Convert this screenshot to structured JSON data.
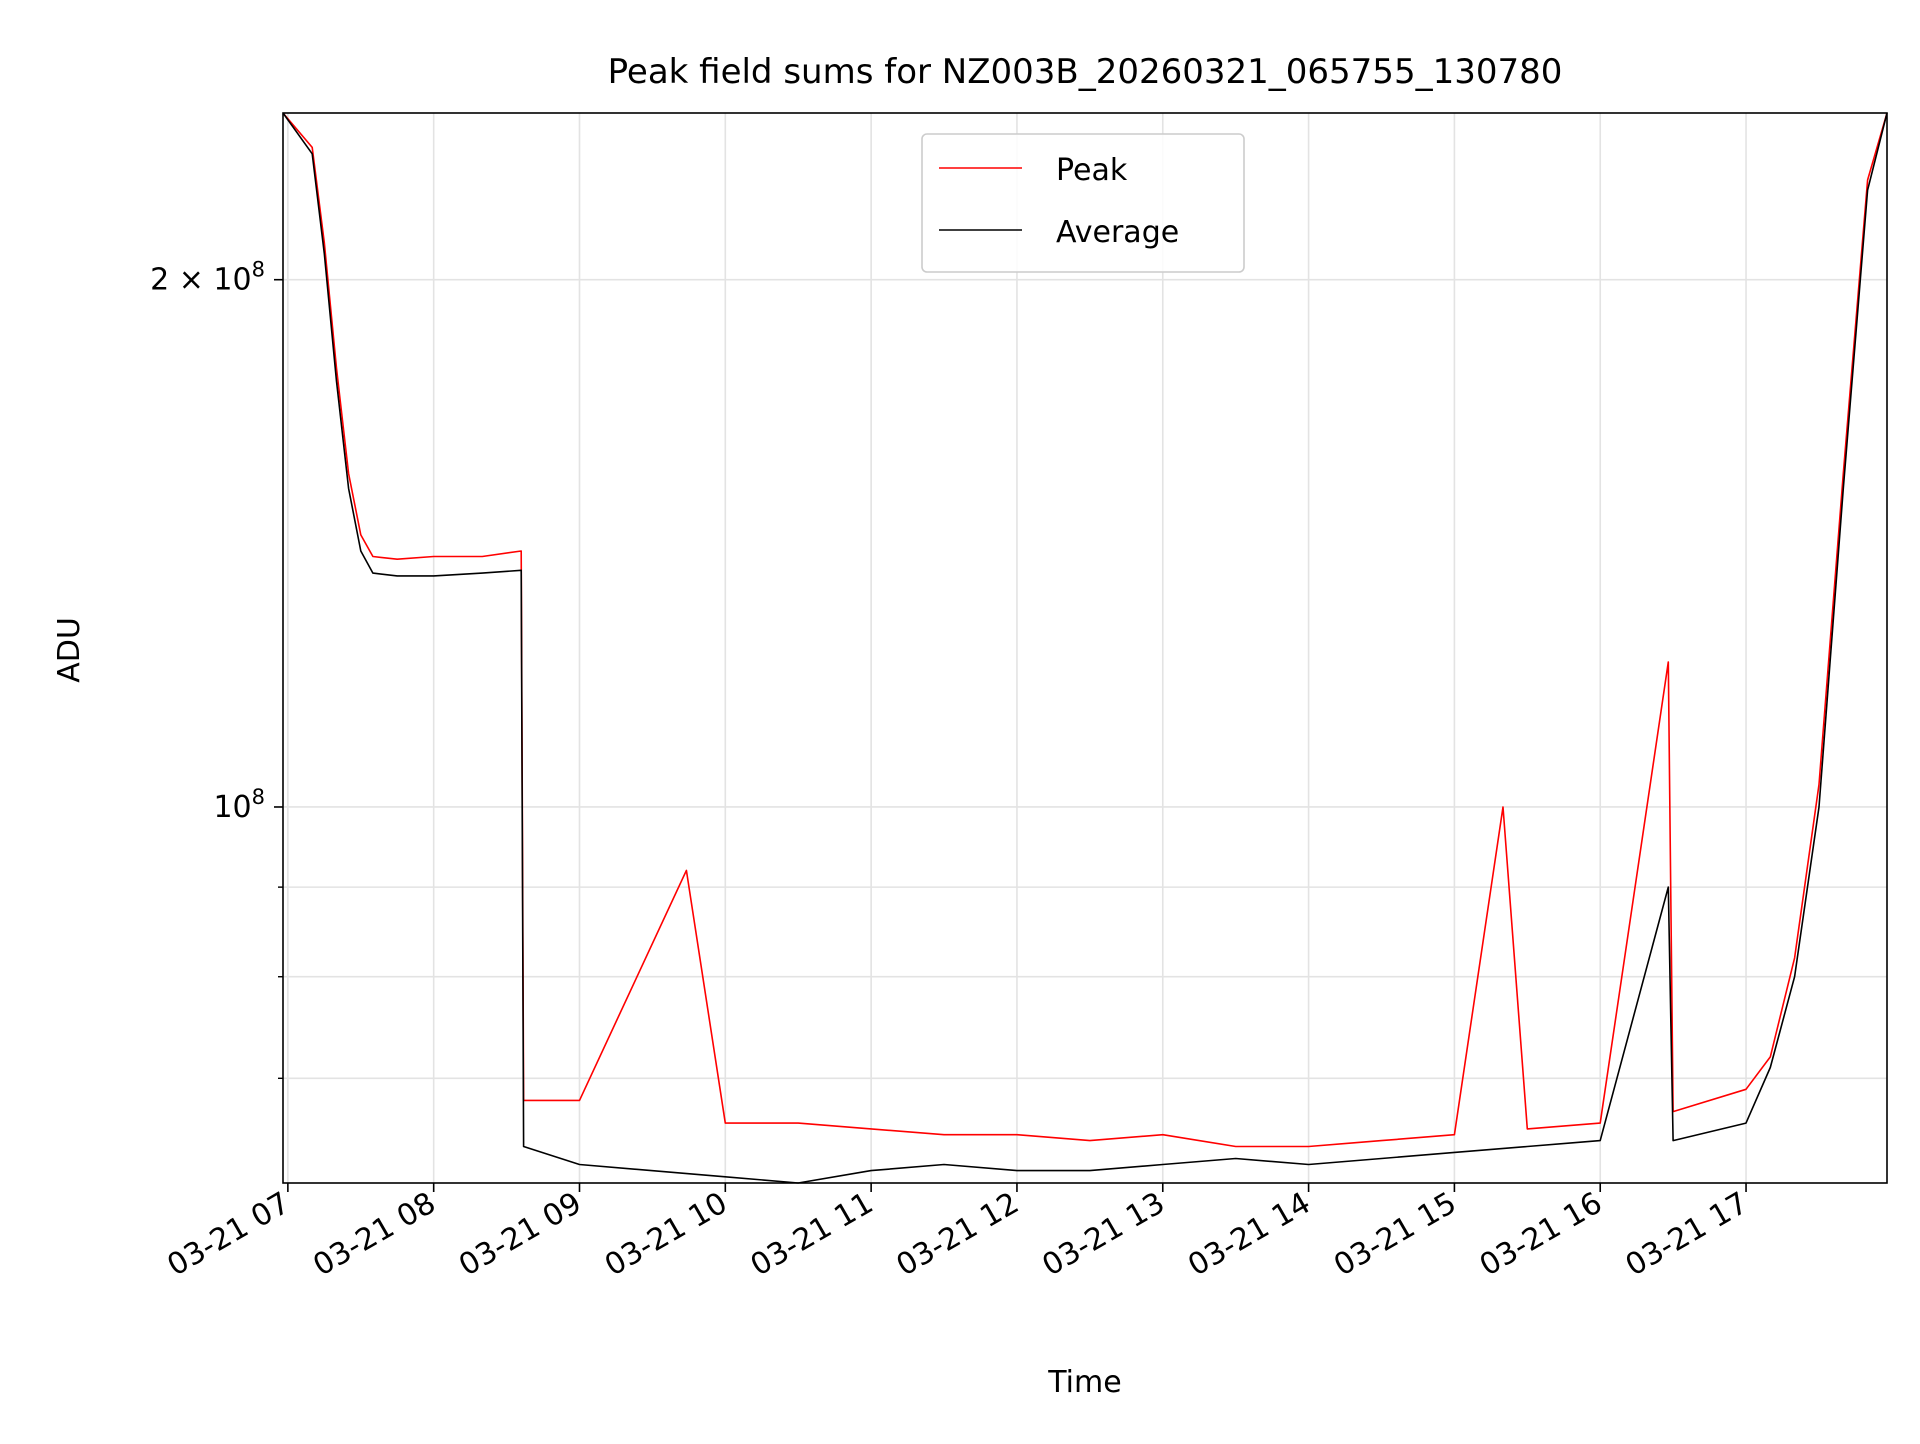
{
  "chart_data": {
    "type": "line",
    "title": "Peak field sums for NZ003B_20260321_065755_130780",
    "xlabel": "Time",
    "ylabel": "ADU",
    "y_scale": "log",
    "ylim": [
      61000000,
      249000000
    ],
    "xlim": [
      "03-21 06:58",
      "03-21 17:58"
    ],
    "grid": true,
    "legend_position": "upper center",
    "x_ticks": [
      "03-21 07",
      "03-21 08",
      "03-21 09",
      "03-21 10",
      "03-21 11",
      "03-21 12",
      "03-21 13",
      "03-21 14",
      "03-21 15",
      "03-21 16",
      "03-21 17"
    ],
    "y_tick_labels": [
      {
        "value": 200000000,
        "label": "2 × 10⁸",
        "base": "2 × 10",
        "exp": "8"
      },
      {
        "value": 100000000,
        "label": "10⁸",
        "base": "10",
        "exp": "8"
      }
    ],
    "y_minor_ticks": [
      60000000,
      70000000,
      80000000,
      90000000
    ],
    "series": [
      {
        "name": "Peak",
        "color": "#ff0000",
        "x": [
          "03-21 06:58",
          "03-21 07:10",
          "03-21 07:15",
          "03-21 07:20",
          "03-21 07:25",
          "03-21 07:30",
          "03-21 07:35",
          "03-21 07:45",
          "03-21 08:00",
          "03-21 08:20",
          "03-21 08:36",
          "03-21 08:37",
          "03-21 09:00",
          "03-21 09:44",
          "03-21 10:00",
          "03-21 10:30",
          "03-21 11:00",
          "03-21 11:30",
          "03-21 12:00",
          "03-21 12:30",
          "03-21 13:00",
          "03-21 13:30",
          "03-21 14:00",
          "03-21 14:30",
          "03-21 15:00",
          "03-21 15:20",
          "03-21 15:30",
          "03-21 16:00",
          "03-21 16:28",
          "03-21 16:30",
          "03-21 17:00",
          "03-21 17:10",
          "03-21 17:20",
          "03-21 17:30",
          "03-21 17:40",
          "03-21 17:50",
          "03-21 17:58"
        ],
        "values": [
          249000000,
          238000000,
          210000000,
          178000000,
          155000000,
          143000000,
          139000000,
          138500000,
          139000000,
          139000000,
          140000000,
          68000000,
          68000000,
          92000000,
          66000000,
          66000000,
          65500000,
          65000000,
          65000000,
          64500000,
          65000000,
          64000000,
          64000000,
          64500000,
          65000000,
          100000000,
          65500000,
          66000000,
          121000000,
          67000000,
          69000000,
          72000000,
          82000000,
          103000000,
          155000000,
          228000000,
          249000000
        ]
      },
      {
        "name": "Average",
        "color": "#000000",
        "x": [
          "03-21 06:58",
          "03-21 07:10",
          "03-21 07:15",
          "03-21 07:20",
          "03-21 07:25",
          "03-21 07:30",
          "03-21 07:35",
          "03-21 07:45",
          "03-21 08:00",
          "03-21 08:20",
          "03-21 08:36",
          "03-21 08:37",
          "03-21 09:00",
          "03-21 10:00",
          "03-21 10:30",
          "03-21 11:00",
          "03-21 11:30",
          "03-21 12:00",
          "03-21 12:30",
          "03-21 13:00",
          "03-21 13:30",
          "03-21 14:00",
          "03-21 14:30",
          "03-21 15:00",
          "03-21 15:30",
          "03-21 16:00",
          "03-21 16:28",
          "03-21 16:30",
          "03-21 17:00",
          "03-21 17:10",
          "03-21 17:20",
          "03-21 17:30",
          "03-21 17:40",
          "03-21 17:50",
          "03-21 17:58"
        ],
        "values": [
          249000000,
          236000000,
          207000000,
          175000000,
          152000000,
          140000000,
          136000000,
          135500000,
          135500000,
          136000000,
          136500000,
          64000000,
          62500000,
          61500000,
          61000000,
          62000000,
          62500000,
          62000000,
          62000000,
          62500000,
          63000000,
          62500000,
          63000000,
          63500000,
          64000000,
          64500000,
          90000000,
          64500000,
          66000000,
          71000000,
          80000000,
          100000000,
          152000000,
          225000000,
          249000000
        ]
      }
    ]
  }
}
